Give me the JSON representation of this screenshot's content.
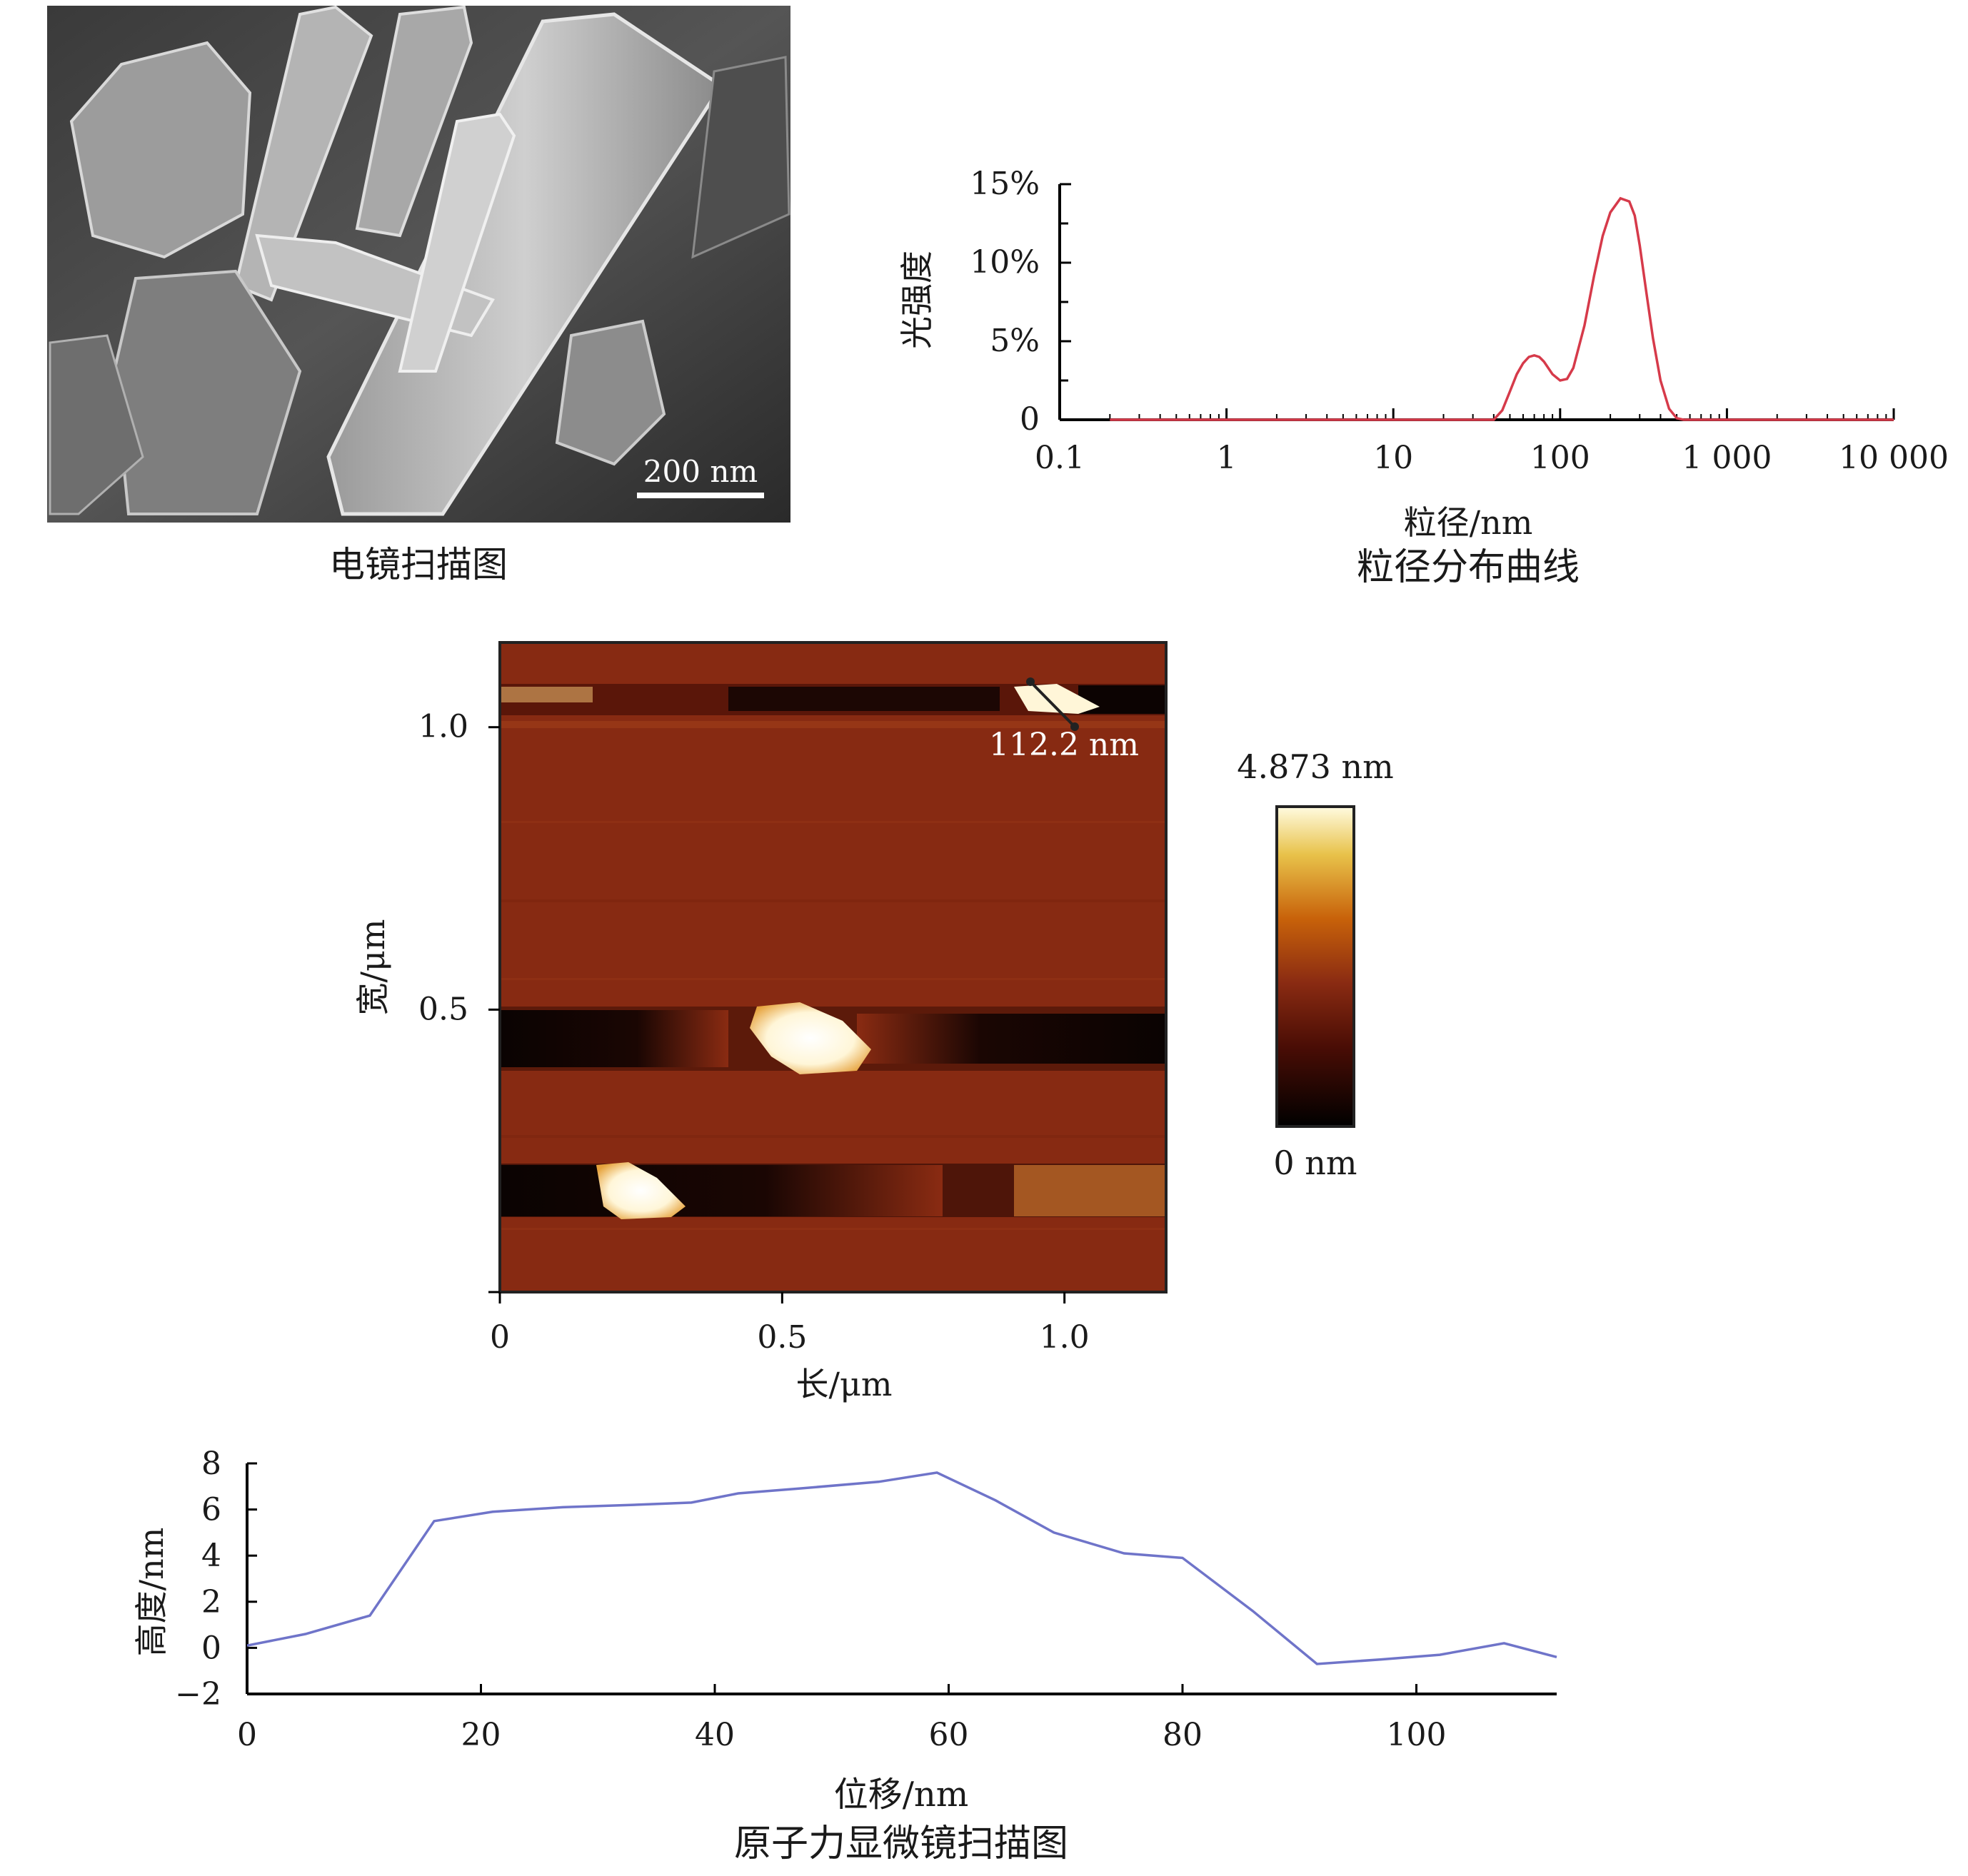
{
  "sem": {
    "caption": "电镜扫描图",
    "scale_bar_label": "200 nm"
  },
  "chart_data": [
    {
      "type": "line",
      "title": "粒径分布曲线",
      "xlabel": "粒径/nm",
      "ylabel": "光强度",
      "x_scale": "log",
      "x_ticks": [
        0.1,
        1,
        10,
        100,
        1000,
        10000
      ],
      "x_tick_labels": [
        "0.1",
        "1",
        "10",
        "100",
        "1 000",
        "10 000"
      ],
      "y_ticks": [
        0,
        5,
        10,
        15
      ],
      "y_tick_labels": [
        "0",
        "5%",
        "10%",
        "15%"
      ],
      "xlim": [
        0.1,
        10000
      ],
      "ylim": [
        0,
        15
      ],
      "series": [
        {
          "color": "#d63a4a",
          "x": [
            0.2,
            1,
            10,
            40,
            45,
            50,
            55,
            60,
            65,
            70,
            75,
            80,
            90,
            100,
            110,
            120,
            140,
            160,
            180,
            200,
            230,
            260,
            280,
            300,
            330,
            360,
            400,
            450,
            500,
            550,
            800,
            10000
          ],
          "y": [
            0,
            0,
            0,
            0,
            0.6,
            1.8,
            2.9,
            3.6,
            4.0,
            4.1,
            4.0,
            3.7,
            2.9,
            2.5,
            2.6,
            3.3,
            6.0,
            9.2,
            11.7,
            13.2,
            14.1,
            13.9,
            13.0,
            11.1,
            8.0,
            5.2,
            2.5,
            0.7,
            0.1,
            0,
            0,
            0
          ]
        }
      ]
    },
    {
      "type": "heatmap",
      "xlabel": "长/μm",
      "ylabel": "宽/μm",
      "x_ticks": [
        0,
        0.5,
        1.0
      ],
      "x_tick_labels": [
        "0",
        "0.5",
        "1.0"
      ],
      "y_ticks": [
        0.5,
        1.0
      ],
      "y_tick_labels": [
        "0.5",
        "1.0"
      ],
      "xlim": [
        0,
        1.18
      ],
      "ylim": [
        0,
        1.15
      ],
      "colorbar": {
        "max_label": "4.873 nm",
        "min_label": "0 nm",
        "max": 4.873,
        "min": 0
      },
      "annotation": "112.2 nm"
    },
    {
      "type": "line",
      "xlabel": "位移/nm",
      "ylabel": "高度/nm",
      "x_ticks": [
        0,
        20,
        40,
        60,
        80,
        100
      ],
      "x_tick_labels": [
        "0",
        "20",
        "40",
        "60",
        "80",
        "100"
      ],
      "y_ticks": [
        -2,
        0,
        2,
        4,
        6,
        8
      ],
      "y_tick_labels": [
        "−2",
        "0",
        "2",
        "4",
        "6",
        "8"
      ],
      "xlim": [
        0,
        112
      ],
      "ylim": [
        -2,
        8
      ],
      "series": [
        {
          "color": "#6f74c9",
          "x": [
            0,
            5,
            10.5,
            16,
            21,
            27,
            33,
            38,
            42,
            47,
            54,
            59,
            64,
            69,
            75,
            80,
            86,
            91.5,
            97,
            102,
            107.5,
            112
          ],
          "y": [
            0.1,
            0.6,
            1.4,
            5.5,
            5.9,
            6.1,
            6.2,
            6.3,
            6.7,
            6.9,
            7.2,
            7.6,
            6.4,
            5.0,
            4.1,
            3.9,
            1.6,
            -0.7,
            -0.5,
            -0.3,
            0.2,
            -0.4
          ]
        }
      ]
    }
  ],
  "afm_caption": "原子力显微镜扫描图",
  "colors": {
    "psd_line": "#d63a4a",
    "profile_line": "#6f74c9",
    "afm_base": "#8a2b12"
  }
}
